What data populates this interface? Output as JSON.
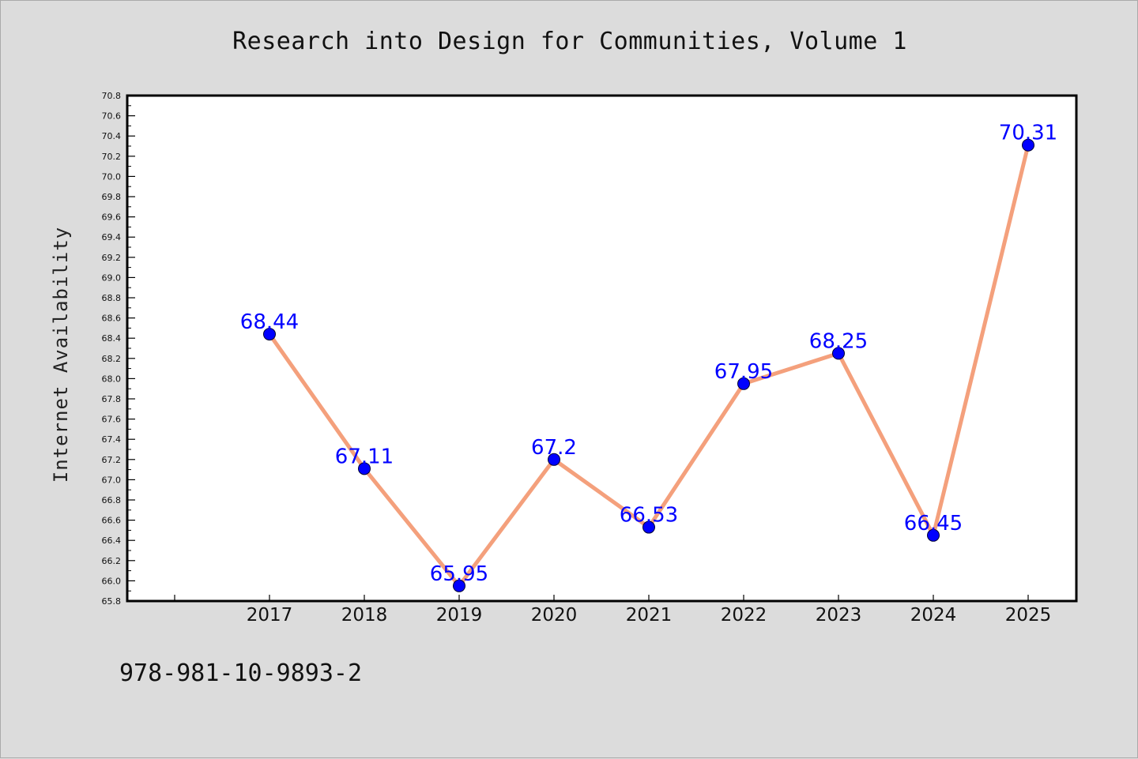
{
  "chart_data": {
    "type": "line",
    "title": "Research into Design for Communities, Volume 1",
    "ylabel": "Internet Availability",
    "xlabel": "",
    "categories": [
      "2017",
      "2018",
      "2019",
      "2020",
      "2021",
      "2022",
      "2023",
      "2024",
      "2025"
    ],
    "values": [
      68.44,
      67.11,
      65.95,
      67.2,
      66.53,
      67.95,
      68.25,
      66.45,
      70.31
    ],
    "data_labels": [
      "68.44",
      "67.11",
      "65.95",
      "67.2",
      "66.53",
      "67.95",
      "68.25",
      "66.45",
      "70.31"
    ],
    "ylim": [
      65.8,
      70.8
    ],
    "ytick_step": 0.2,
    "ytick_labels": [
      "65.8",
      "66.0",
      "66.2",
      "66.4",
      "66.6",
      "66.8",
      "67.0",
      "67.2",
      "67.4",
      "67.6",
      "67.8",
      "68.0",
      "68.2",
      "68.4",
      "68.6",
      "68.8",
      "69.0",
      "69.2",
      "69.4",
      "69.6",
      "69.8",
      "70.0",
      "70.2",
      "70.4",
      "70.6",
      "70.8"
    ],
    "grid": false,
    "legend": "none",
    "line_color": "#f4a07c",
    "marker_color": "#0000ff",
    "label_color": "#0000ff"
  },
  "footer": {
    "isbn": "978-981-10-9893-2"
  }
}
